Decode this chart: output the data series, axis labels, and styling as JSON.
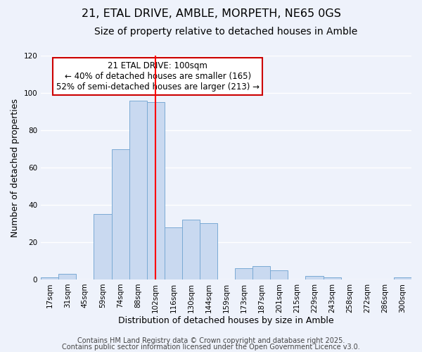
{
  "title": "21, ETAL DRIVE, AMBLE, MORPETH, NE65 0GS",
  "subtitle": "Size of property relative to detached houses in Amble",
  "xlabel": "Distribution of detached houses by size in Amble",
  "ylabel": "Number of detached properties",
  "bin_labels": [
    "17sqm",
    "31sqm",
    "45sqm",
    "59sqm",
    "74sqm",
    "88sqm",
    "102sqm",
    "116sqm",
    "130sqm",
    "144sqm",
    "159sqm",
    "173sqm",
    "187sqm",
    "201sqm",
    "215sqm",
    "229sqm",
    "243sqm",
    "258sqm",
    "272sqm",
    "286sqm",
    "300sqm"
  ],
  "bar_values": [
    1,
    3,
    0,
    35,
    70,
    96,
    95,
    28,
    32,
    30,
    0,
    6,
    7,
    5,
    0,
    2,
    1,
    0,
    0,
    0,
    1
  ],
  "bar_color": "#c9d9f0",
  "bar_edge_color": "#7aaad4",
  "vline_x_index": 6,
  "vline_color": "red",
  "ylim": [
    0,
    120
  ],
  "yticks": [
    0,
    20,
    40,
    60,
    80,
    100,
    120
  ],
  "annotation_title": "21 ETAL DRIVE: 100sqm",
  "annotation_line1": "← 40% of detached houses are smaller (165)",
  "annotation_line2": "52% of semi-detached houses are larger (213) →",
  "footer1": "Contains HM Land Registry data © Crown copyright and database right 2025.",
  "footer2": "Contains public sector information licensed under the Open Government Licence v3.0.",
  "background_color": "#eef2fb",
  "grid_color": "#ffffff",
  "title_fontsize": 11.5,
  "subtitle_fontsize": 10,
  "axis_label_fontsize": 9,
  "tick_fontsize": 7.5,
  "annotation_fontsize": 8.5,
  "footer_fontsize": 7
}
